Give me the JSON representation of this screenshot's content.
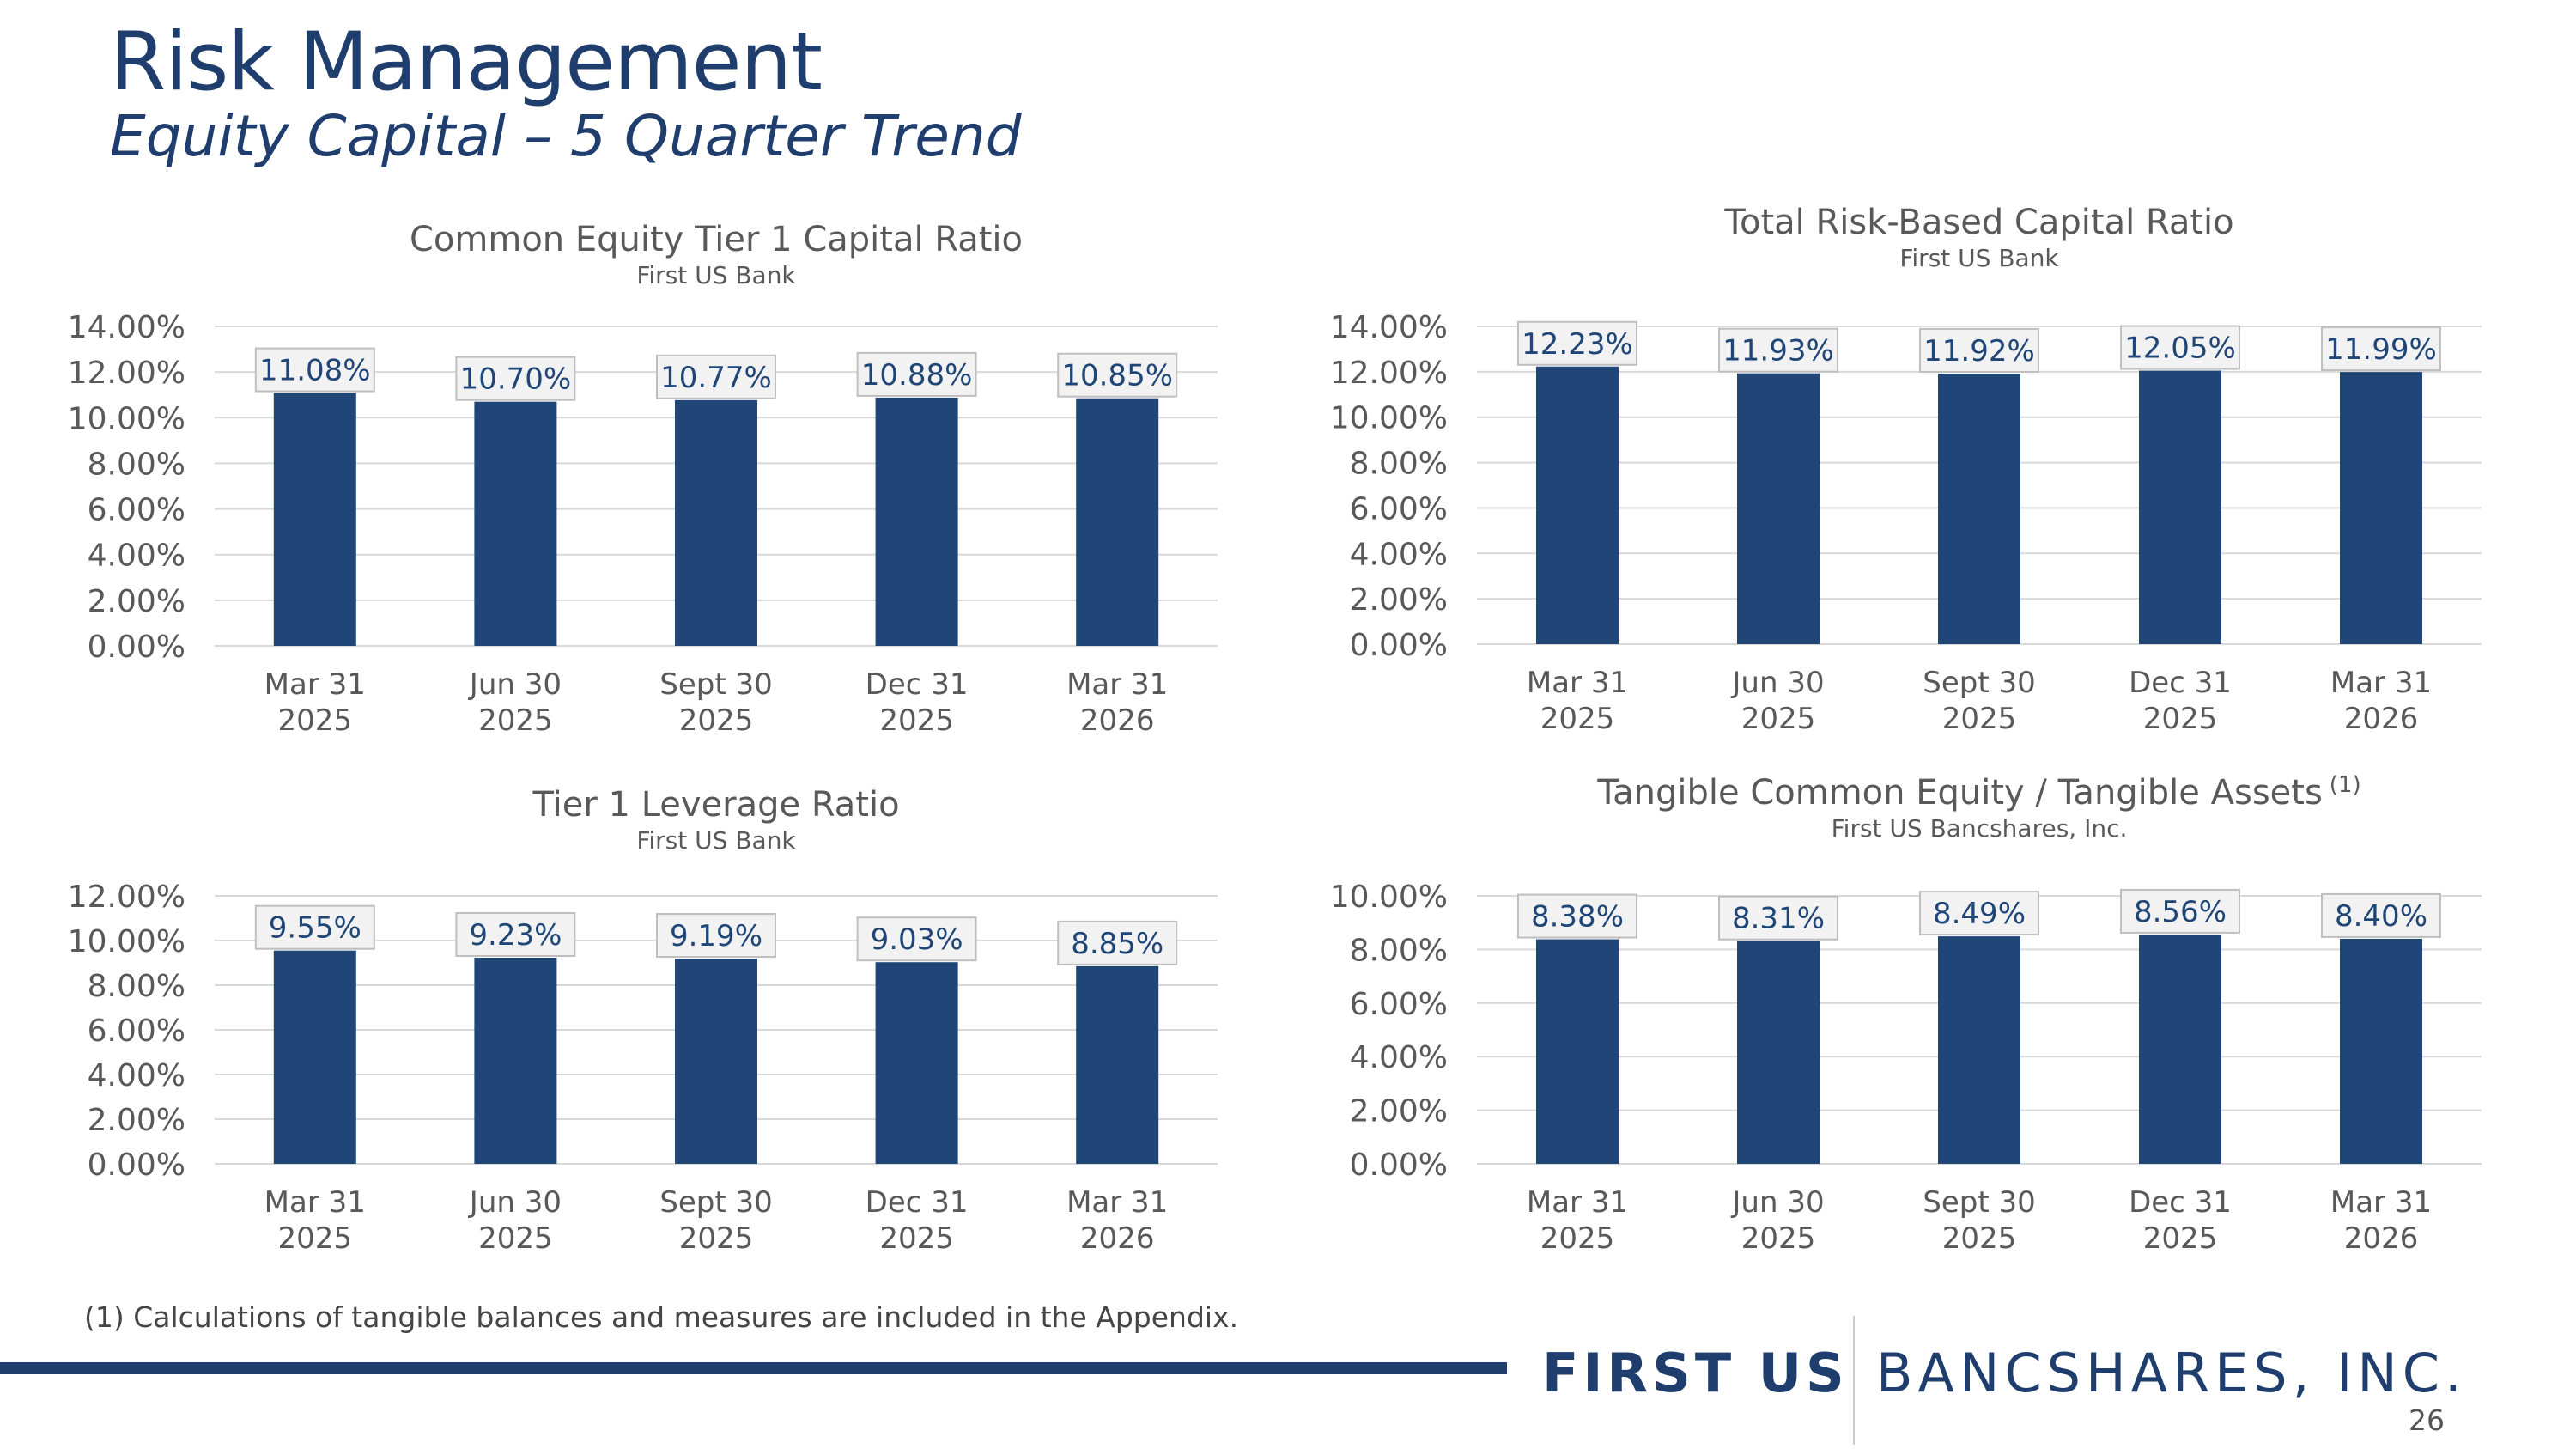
{
  "header": {
    "title": "Risk Management",
    "subtitle": "Equity Capital – 5 Quarter Trend"
  },
  "footnote": "(1) Calculations of tangible balances and measures are included in the Appendix.",
  "footer": {
    "brand_first": "FIRST US",
    "brand_rest": "BANCSHARES, INC.",
    "page_number": "26"
  },
  "colors": {
    "bar": "#1f4677",
    "title_text": "#1f3e6e",
    "chart_title": "#595959",
    "gridline": "#d9d9d9",
    "label_box_fill": "#f2f2f2",
    "label_box_border": "#bfbfbf",
    "label_text": "#1f4677"
  },
  "chart_data": [
    {
      "type": "bar",
      "title": "Common Equity Tier 1 Capital Ratio",
      "title_superscript": "",
      "subtitle": "First US Bank",
      "categories": [
        [
          "Mar 31",
          "2025"
        ],
        [
          "Jun 30",
          "2025"
        ],
        [
          "Sept 30",
          "2025"
        ],
        [
          "Dec 31",
          "2025"
        ],
        [
          "Mar 31",
          "2026"
        ]
      ],
      "values": [
        11.08,
        10.7,
        10.77,
        10.88,
        10.85
      ],
      "value_labels": [
        "11.08%",
        "10.70%",
        "10.77%",
        "10.88%",
        "10.85%"
      ],
      "yticks": [
        "0.00%",
        "2.00%",
        "4.00%",
        "6.00%",
        "8.00%",
        "10.00%",
        "12.00%",
        "14.00%"
      ],
      "ylim": [
        0,
        14
      ],
      "grid": true,
      "legend": "none"
    },
    {
      "type": "bar",
      "title": "Total Risk-Based Capital Ratio",
      "title_superscript": "",
      "subtitle": "First US Bank",
      "categories": [
        [
          "Mar 31",
          "2025"
        ],
        [
          "Jun 30",
          "2025"
        ],
        [
          "Sept 30",
          "2025"
        ],
        [
          "Dec 31",
          "2025"
        ],
        [
          "Mar 31",
          "2026"
        ]
      ],
      "values": [
        12.23,
        11.93,
        11.92,
        12.05,
        11.99
      ],
      "value_labels": [
        "12.23%",
        "11.93%",
        "11.92%",
        "12.05%",
        "11.99%"
      ],
      "yticks": [
        "0.00%",
        "2.00%",
        "4.00%",
        "6.00%",
        "8.00%",
        "10.00%",
        "12.00%",
        "14.00%"
      ],
      "ylim": [
        0,
        14
      ],
      "grid": true,
      "legend": "none"
    },
    {
      "type": "bar",
      "title": "Tier 1 Leverage Ratio",
      "title_superscript": "",
      "subtitle": "First US Bank",
      "categories": [
        [
          "Mar 31",
          "2025"
        ],
        [
          "Jun 30",
          "2025"
        ],
        [
          "Sept 30",
          "2025"
        ],
        [
          "Dec 31",
          "2025"
        ],
        [
          "Mar 31",
          "2026"
        ]
      ],
      "values": [
        9.55,
        9.23,
        9.19,
        9.03,
        8.85
      ],
      "value_labels": [
        "9.55%",
        "9.23%",
        "9.19%",
        "9.03%",
        "8.85%"
      ],
      "yticks": [
        "0.00%",
        "2.00%",
        "4.00%",
        "6.00%",
        "8.00%",
        "10.00%",
        "12.00%"
      ],
      "ylim": [
        0,
        12
      ],
      "grid": true,
      "legend": "none"
    },
    {
      "type": "bar",
      "title": "Tangible Common Equity / Tangible Assets",
      "title_superscript": "(1)",
      "subtitle": "First US Bancshares, Inc.",
      "categories": [
        [
          "Mar 31",
          "2025"
        ],
        [
          "Jun 30",
          "2025"
        ],
        [
          "Sept 30",
          "2025"
        ],
        [
          "Dec 31",
          "2025"
        ],
        [
          "Mar 31",
          "2026"
        ]
      ],
      "values": [
        8.38,
        8.31,
        8.49,
        8.56,
        8.4
      ],
      "value_labels": [
        "8.38%",
        "8.31%",
        "8.49%",
        "8.56%",
        "8.40%"
      ],
      "yticks": [
        "0.00%",
        "2.00%",
        "4.00%",
        "6.00%",
        "8.00%",
        "10.00%"
      ],
      "ylim": [
        0,
        10
      ],
      "grid": true,
      "legend": "none"
    }
  ]
}
